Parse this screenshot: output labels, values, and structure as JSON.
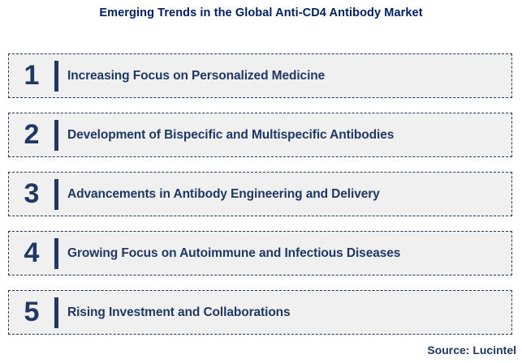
{
  "title": "Emerging Trends in the Global Anti-CD4 Antibody Market",
  "source": "Source: Lucintel",
  "colors": {
    "navy": "#1F3864",
    "title_blue": "#002060",
    "box_background": "#F0F0F0",
    "page_background": "#FFFFFF"
  },
  "trends": [
    {
      "number": "1",
      "label": "Increasing Focus on Personalized Medicine"
    },
    {
      "number": "2",
      "label": "Development of Bispecific and Multispecific Antibodies"
    },
    {
      "number": "3",
      "label": "Advancements in Antibody Engineering and Delivery"
    },
    {
      "number": "4",
      "label": "Growing Focus on Autoimmune and Infectious Diseases"
    },
    {
      "number": "5",
      "label": "Rising Investment and Collaborations"
    }
  ]
}
